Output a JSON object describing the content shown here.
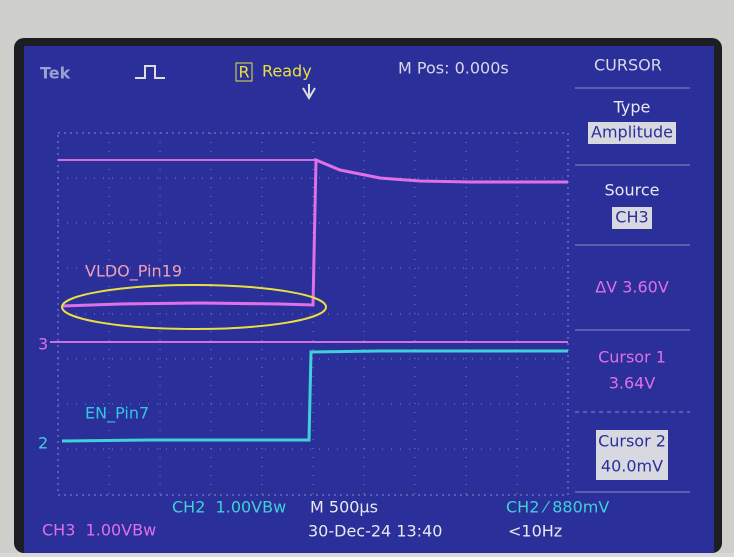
{
  "header": {
    "brand": "Tek",
    "trigger_flag": "R",
    "status": "Ready",
    "position": "M Pos: 0.000s",
    "menu_title": "CURSOR"
  },
  "menu": [
    {
      "label": "Type",
      "value": "Amplitude"
    },
    {
      "label": "Source",
      "value": "CH3"
    },
    {
      "label": "ΔV 3.60V"
    },
    {
      "label": "Cursor 1",
      "value": "3.64V"
    },
    {
      "label": "Cursor 2",
      "value": "40.0mV"
    }
  ],
  "annotations": {
    "upper_trace": "VLDO_Pin19",
    "lower_trace": "EN_Pin7"
  },
  "channel_markers": {
    "ch3": "3",
    "ch2": "2"
  },
  "footer": {
    "ch2_scale": "CH2  1.00VBw",
    "timebase": "M 500µs",
    "trigger": "CH2 ⁄ 880mV",
    "ch3_scale": "CH3  1.00VBw",
    "datetime": "30-Dec-24 13:40",
    "frequency": "<10Hz"
  }
}
